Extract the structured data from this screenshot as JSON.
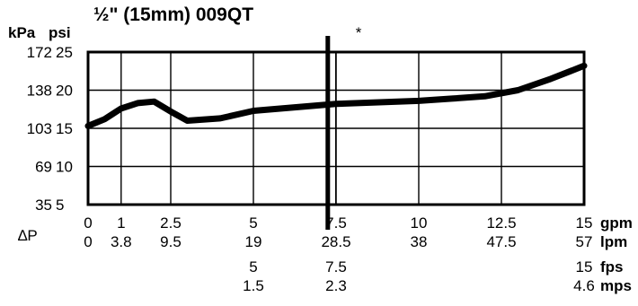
{
  "chart_data": {
    "type": "line",
    "title": "½\" (15mm) 009QT",
    "ylabel_left": "kPa",
    "ylabel_right": "psi",
    "xlabel": "∆P",
    "y_axes": {
      "psi_range": [
        5,
        25
      ],
      "psi_ticks": [
        "25",
        "20",
        "15",
        "10",
        "5"
      ],
      "kpa_ticks": [
        "172",
        "138",
        "103",
        "69",
        "35"
      ]
    },
    "x_axes": {
      "gpm_range": [
        0,
        15
      ],
      "gpm": {
        "unit": "gpm",
        "positions": [
          0,
          1,
          2.5,
          5,
          7.5,
          10,
          12.5,
          15
        ],
        "labels": [
          "0",
          "1",
          "2.5",
          "5",
          "7.5",
          "10",
          "12.5",
          "15"
        ]
      },
      "lpm": {
        "unit": "lpm",
        "positions": [
          0,
          1,
          2.5,
          5,
          7.5,
          10,
          12.5,
          15
        ],
        "labels": [
          "0",
          "3.8",
          "9.5",
          "19",
          "28.5",
          "38",
          "47.5",
          "57"
        ]
      },
      "fps": {
        "unit": "fps",
        "positions": [
          5,
          7.5,
          15
        ],
        "labels": [
          "5",
          "7.5",
          "15"
        ]
      },
      "mps": {
        "unit": "mps",
        "positions": [
          5,
          7.5,
          15
        ],
        "labels": [
          "1.5",
          "2.3",
          "4.6"
        ]
      }
    },
    "grid": true,
    "marker": {
      "label": "*",
      "x": 7.25
    },
    "series": [
      {
        "x": [
          0,
          0.5,
          1,
          1.5,
          2,
          2.5,
          3,
          4,
          5,
          7.5,
          10,
          11,
          12,
          13,
          14,
          15
        ],
        "y": [
          15.3,
          16.2,
          17.6,
          18.3,
          18.5,
          17.2,
          16.0,
          16.3,
          17.3,
          18.2,
          18.6,
          18.9,
          19.2,
          20.0,
          21.5,
          23.2
        ]
      }
    ]
  }
}
